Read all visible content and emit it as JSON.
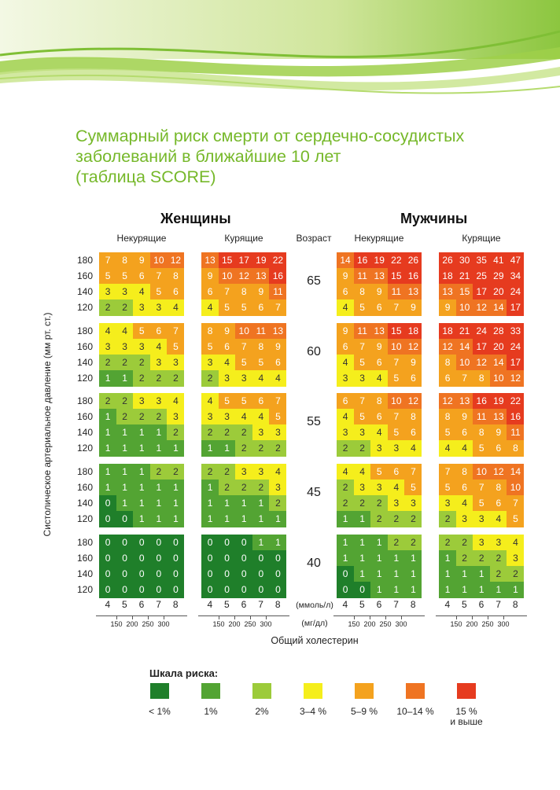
{
  "title": "Суммарный риск смерти от сердечно-сосудистых\nзаболеваний в ближайшие 10 лет\n(таблица SCORE)",
  "colors": {
    "1": "#1f7f2a",
    "2": "#53a433",
    "3": "#9ccb3a",
    "4": "#f5ee1c",
    "5": "#f4a21e",
    "6": "#ef7422",
    "7": "#e63b1f",
    "title": "#76b82a"
  },
  "chart_data": {
    "type": "heatmap",
    "groups": [
      {
        "label": "Женщины",
        "subgroups": [
          "Некурящие",
          "Курящие"
        ]
      },
      {
        "label": "Мужчины",
        "subgroups": [
          "Некурящие",
          "Курящие"
        ]
      }
    ],
    "age_header": "Возраст",
    "ages": [
      "65",
      "60",
      "55",
      "45",
      "40"
    ],
    "systolic_bp": [
      "180",
      "160",
      "140",
      "120"
    ],
    "y_axis_label": "Систолическое артериальное давление (мм рт. ст.)",
    "cholesterol_mmol": [
      "4",
      "5",
      "6",
      "7",
      "8"
    ],
    "cholesterol_mg": [
      "150",
      "200",
      "250",
      "300"
    ],
    "unit_mmol": "(ммоль/л)",
    "unit_mg": "(мг/дл)",
    "x_axis_label": "Общий холестерин",
    "values": {
      "women_nonsmoking": [
        [
          [
            7,
            8,
            9,
            10,
            12
          ],
          [
            5,
            5,
            6,
            7,
            8
          ],
          [
            3,
            3,
            4,
            5,
            6
          ],
          [
            2,
            2,
            3,
            3,
            4
          ]
        ],
        [
          [
            4,
            4,
            5,
            6,
            7
          ],
          [
            3,
            3,
            3,
            4,
            5
          ],
          [
            2,
            2,
            2,
            3,
            3
          ],
          [
            1,
            1,
            2,
            2,
            2
          ]
        ],
        [
          [
            2,
            2,
            3,
            3,
            4
          ],
          [
            1,
            2,
            2,
            2,
            3
          ],
          [
            1,
            1,
            1,
            1,
            2
          ],
          [
            1,
            1,
            1,
            1,
            1
          ]
        ],
        [
          [
            1,
            1,
            1,
            2,
            2
          ],
          [
            1,
            1,
            1,
            1,
            1
          ],
          [
            0,
            1,
            1,
            1,
            1
          ],
          [
            0,
            0,
            1,
            1,
            1
          ]
        ],
        [
          [
            0,
            0,
            0,
            0,
            0
          ],
          [
            0,
            0,
            0,
            0,
            0
          ],
          [
            0,
            0,
            0,
            0,
            0
          ],
          [
            0,
            0,
            0,
            0,
            0
          ]
        ]
      ],
      "women_smoking": [
        [
          [
            13,
            15,
            17,
            19,
            22
          ],
          [
            9,
            10,
            12,
            13,
            16
          ],
          [
            6,
            7,
            8,
            9,
            11
          ],
          [
            4,
            5,
            5,
            6,
            7
          ]
        ],
        [
          [
            8,
            9,
            10,
            11,
            13
          ],
          [
            5,
            6,
            7,
            8,
            9
          ],
          [
            3,
            4,
            5,
            5,
            6
          ],
          [
            2,
            3,
            3,
            4,
            4
          ]
        ],
        [
          [
            4,
            5,
            5,
            6,
            7
          ],
          [
            3,
            3,
            4,
            4,
            5
          ],
          [
            2,
            2,
            2,
            3,
            3
          ],
          [
            1,
            1,
            2,
            2,
            2
          ]
        ],
        [
          [
            2,
            2,
            3,
            3,
            4
          ],
          [
            1,
            2,
            2,
            2,
            3
          ],
          [
            1,
            1,
            1,
            1,
            2
          ],
          [
            1,
            1,
            1,
            1,
            1
          ]
        ],
        [
          [
            0,
            0,
            0,
            1,
            1
          ],
          [
            0,
            0,
            0,
            0,
            0
          ],
          [
            0,
            0,
            0,
            0,
            0
          ],
          [
            0,
            0,
            0,
            0,
            0
          ]
        ]
      ],
      "men_nonsmoking": [
        [
          [
            14,
            16,
            19,
            22,
            26
          ],
          [
            9,
            11,
            13,
            15,
            16
          ],
          [
            6,
            8,
            9,
            11,
            13
          ],
          [
            4,
            5,
            6,
            7,
            9
          ]
        ],
        [
          [
            9,
            11,
            13,
            15,
            18
          ],
          [
            6,
            7,
            9,
            10,
            12
          ],
          [
            4,
            5,
            6,
            7,
            9
          ],
          [
            3,
            3,
            4,
            5,
            6
          ]
        ],
        [
          [
            6,
            7,
            8,
            10,
            12
          ],
          [
            4,
            5,
            6,
            7,
            8
          ],
          [
            3,
            3,
            4,
            5,
            6
          ],
          [
            2,
            2,
            3,
            3,
            4
          ]
        ],
        [
          [
            4,
            4,
            5,
            6,
            7
          ],
          [
            2,
            3,
            3,
            4,
            5
          ],
          [
            2,
            2,
            2,
            3,
            3
          ],
          [
            1,
            1,
            2,
            2,
            2
          ]
        ],
        [
          [
            1,
            1,
            1,
            2,
            2
          ],
          [
            1,
            1,
            1,
            1,
            1
          ],
          [
            0,
            1,
            1,
            1,
            1
          ],
          [
            0,
            0,
            1,
            1,
            1
          ]
        ]
      ],
      "men_smoking": [
        [
          [
            26,
            30,
            35,
            41,
            47
          ],
          [
            18,
            21,
            25,
            29,
            34
          ],
          [
            13,
            15,
            17,
            20,
            24
          ],
          [
            9,
            10,
            12,
            14,
            17
          ]
        ],
        [
          [
            18,
            21,
            24,
            28,
            33
          ],
          [
            12,
            14,
            17,
            20,
            24
          ],
          [
            8,
            10,
            12,
            14,
            17
          ],
          [
            6,
            7,
            8,
            10,
            12
          ]
        ],
        [
          [
            12,
            13,
            16,
            19,
            22
          ],
          [
            8,
            9,
            11,
            13,
            16
          ],
          [
            5,
            6,
            8,
            9,
            11
          ],
          [
            4,
            4,
            5,
            6,
            8
          ]
        ],
        [
          [
            7,
            8,
            10,
            12,
            14
          ],
          [
            5,
            6,
            7,
            8,
            10
          ],
          [
            3,
            4,
            5,
            6,
            7
          ],
          [
            2,
            3,
            3,
            4,
            5
          ]
        ],
        [
          [
            2,
            2,
            3,
            3,
            4
          ],
          [
            1,
            2,
            2,
            2,
            3
          ],
          [
            1,
            1,
            1,
            2,
            2
          ],
          [
            1,
            1,
            1,
            1,
            1
          ]
        ]
      ]
    },
    "colors_override": {
      "women_nonsmoking": [
        [
          [
            5,
            5,
            5,
            6,
            6
          ],
          [
            5,
            5,
            5,
            5,
            5
          ],
          [
            4,
            4,
            4,
            5,
            5
          ],
          [
            3,
            3,
            4,
            4,
            4
          ]
        ],
        [
          [
            4,
            4,
            5,
            5,
            5
          ],
          [
            4,
            4,
            4,
            4,
            5
          ],
          [
            3,
            3,
            3,
            4,
            4
          ],
          [
            2,
            2,
            3,
            3,
            3
          ]
        ],
        [
          [
            3,
            3,
            4,
            4,
            4
          ],
          [
            2,
            3,
            3,
            3,
            4
          ],
          [
            2,
            2,
            2,
            2,
            3
          ],
          [
            2,
            2,
            2,
            2,
            2
          ]
        ],
        [
          [
            2,
            2,
            2,
            3,
            3
          ],
          [
            2,
            2,
            2,
            2,
            2
          ],
          [
            1,
            2,
            2,
            2,
            2
          ],
          [
            1,
            1,
            2,
            2,
            2
          ]
        ],
        [
          [
            1,
            1,
            1,
            1,
            1
          ],
          [
            1,
            1,
            1,
            1,
            1
          ],
          [
            1,
            1,
            1,
            1,
            1
          ],
          [
            1,
            1,
            1,
            1,
            1
          ]
        ]
      ],
      "women_smoking": [
        [
          [
            6,
            7,
            7,
            7,
            7
          ],
          [
            5,
            6,
            6,
            6,
            7
          ],
          [
            5,
            5,
            5,
            5,
            6
          ],
          [
            4,
            5,
            5,
            5,
            5
          ]
        ],
        [
          [
            5,
            5,
            6,
            6,
            6
          ],
          [
            5,
            5,
            5,
            5,
            5
          ],
          [
            4,
            4,
            5,
            5,
            5
          ],
          [
            3,
            4,
            4,
            4,
            4
          ]
        ],
        [
          [
            4,
            5,
            5,
            5,
            5
          ],
          [
            4,
            4,
            4,
            4,
            5
          ],
          [
            3,
            3,
            3,
            4,
            4
          ],
          [
            2,
            2,
            3,
            3,
            3
          ]
        ],
        [
          [
            3,
            3,
            4,
            4,
            4
          ],
          [
            2,
            3,
            3,
            3,
            4
          ],
          [
            2,
            2,
            2,
            2,
            3
          ],
          [
            2,
            2,
            2,
            2,
            2
          ]
        ],
        [
          [
            1,
            1,
            1,
            2,
            2
          ],
          [
            1,
            1,
            1,
            1,
            1
          ],
          [
            1,
            1,
            1,
            1,
            1
          ],
          [
            1,
            1,
            1,
            1,
            1
          ]
        ]
      ],
      "men_nonsmoking": [
        [
          [
            6,
            7,
            7,
            7,
            7
          ],
          [
            5,
            6,
            6,
            7,
            7
          ],
          [
            5,
            5,
            5,
            6,
            6
          ],
          [
            4,
            5,
            5,
            5,
            5
          ]
        ],
        [
          [
            5,
            6,
            6,
            7,
            7
          ],
          [
            5,
            5,
            5,
            6,
            6
          ],
          [
            4,
            5,
            5,
            5,
            5
          ],
          [
            4,
            4,
            4,
            5,
            5
          ]
        ],
        [
          [
            5,
            5,
            5,
            6,
            6
          ],
          [
            4,
            5,
            5,
            5,
            5
          ],
          [
            4,
            4,
            4,
            5,
            5
          ],
          [
            3,
            3,
            4,
            4,
            4
          ]
        ],
        [
          [
            4,
            4,
            5,
            5,
            5
          ],
          [
            3,
            4,
            4,
            4,
            5
          ],
          [
            3,
            3,
            3,
            4,
            4
          ],
          [
            2,
            2,
            3,
            3,
            3
          ]
        ],
        [
          [
            2,
            2,
            2,
            3,
            3
          ],
          [
            2,
            2,
            2,
            2,
            2
          ],
          [
            1,
            2,
            2,
            2,
            2
          ],
          [
            1,
            1,
            2,
            2,
            2
          ]
        ]
      ],
      "men_smoking": [
        [
          [
            7,
            7,
            7,
            7,
            7
          ],
          [
            7,
            7,
            7,
            7,
            7
          ],
          [
            6,
            6,
            7,
            7,
            7
          ],
          [
            5,
            6,
            6,
            6,
            7
          ]
        ],
        [
          [
            7,
            7,
            7,
            7,
            7
          ],
          [
            6,
            6,
            7,
            7,
            7
          ],
          [
            5,
            6,
            6,
            6,
            7
          ],
          [
            5,
            5,
            5,
            6,
            6
          ]
        ],
        [
          [
            6,
            6,
            7,
            7,
            7
          ],
          [
            5,
            5,
            6,
            6,
            7
          ],
          [
            5,
            5,
            5,
            5,
            6
          ],
          [
            4,
            4,
            5,
            5,
            5
          ]
        ],
        [
          [
            5,
            5,
            6,
            6,
            6
          ],
          [
            5,
            5,
            5,
            5,
            6
          ],
          [
            4,
            4,
            5,
            5,
            5
          ],
          [
            3,
            4,
            4,
            4,
            5
          ]
        ],
        [
          [
            3,
            3,
            4,
            4,
            4
          ],
          [
            2,
            3,
            3,
            3,
            4
          ],
          [
            2,
            2,
            2,
            3,
            3
          ],
          [
            2,
            2,
            2,
            2,
            2
          ]
        ]
      ]
    }
  },
  "legend": {
    "title": "Шкала риска:",
    "items": [
      {
        "label": "< 1%",
        "level": 1
      },
      {
        "label": "1%",
        "level": 2
      },
      {
        "label": "2%",
        "level": 3
      },
      {
        "label": "3–4 %",
        "level": 4
      },
      {
        "label": "5–9 %",
        "level": 5
      },
      {
        "label": "10–14 %",
        "level": 6
      },
      {
        "label": "15 %\nи выше",
        "level": 7
      }
    ]
  }
}
